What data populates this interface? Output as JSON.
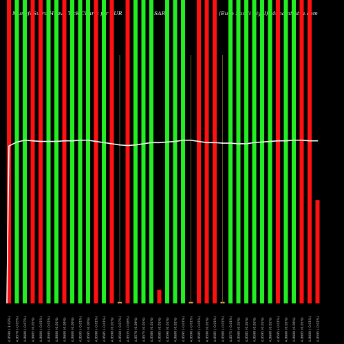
{
  "header": {
    "left": "MunafaSutra Heavy Tick Charts for EUR",
    "mid": "SAR",
    "right": "(Euro Saudi Riyal) MunafaSutra.com"
  },
  "colors": {
    "background": "#000000",
    "up": "#22ee22",
    "down": "#ff1111",
    "small": "#ddaa55",
    "line": "#ffffff",
    "label": "#cccccc"
  },
  "chart_data": {
    "type": "bar",
    "title": "MunafaSutra Heavy Tick Charts for EUR SAR (Euro Saudi Riyal) MunafaSutra.com",
    "categories": [
      "4.0590 (-1.02%)",
      "4.0570 (-0.05%)",
      "4.0600 (-0.07%)",
      "4.0605 (0.01%)",
      "4.0600 (-0.01%)",
      "4.0595 (-0.01%)",
      "4.0600 (0.01%)",
      "4.0600 (0.00%)",
      "4.0600 (0.00%)",
      "4.0595 (-0.01%)",
      "4.0595 (0.00%)",
      "4.0590 (-0.01%)",
      "4.0585 (-0.01%)",
      "4.0590 (0.01%)",
      "4.0560 (-0.07%)",
      "4.0535 (-0.06%)",
      "4.0570 (0.09%)",
      "4.0575 (0.01%)",
      "4.0580 (0.01%)",
      "4.0585 (0.01%)",
      "4.0590 (0.01%)",
      "4.0600 (0.02%)",
      "4.0595 (-0.01%)",
      "4.0590 (-0.01%)",
      "4.0585 (-0.01%)",
      "4.0590 (0.01%)",
      "4.0585 (-0.01%)",
      "4.0580 (-0.01%)",
      "4.0575 (-0.01%)",
      "4.0580 (0.01%)",
      "4.0585 (0.01%)",
      "4.0590 (0.01%)",
      "4.0595 (0.01%)",
      "4.0600 (0.01%)",
      "4.0595 (-0.01%)",
      "4.0600 (0.01%)",
      "4.0600 (0.00%)",
      "4.0605 (0.01%)",
      "4.0600 (-0.01%)",
      "4.0595 (-0.01%)"
    ],
    "series": [
      {
        "values": [
          100,
          100,
          100,
          100,
          100,
          100,
          100,
          100,
          100,
          100,
          100,
          100,
          100,
          100,
          0.5,
          100,
          100,
          100,
          100,
          4.5,
          100,
          100,
          100,
          0.5,
          100,
          100,
          100,
          0.5,
          100,
          100,
          100,
          100,
          100,
          100,
          100,
          100,
          100,
          100,
          100,
          34
        ],
        "colors": [
          "red",
          "green",
          "green",
          "red",
          "red",
          "green",
          "green",
          "red",
          "green",
          "green",
          "green",
          "red",
          "green",
          "red",
          "small",
          "red",
          "green",
          "green",
          "green",
          "red",
          "green",
          "green",
          "green",
          "small",
          "red",
          "red",
          "red",
          "small",
          "green",
          "green",
          "green",
          "green",
          "green",
          "green",
          "red",
          "green",
          "green",
          "red",
          "red",
          "red"
        ]
      },
      {
        "type": "line",
        "values": [
          4.055,
          4.0585,
          4.06,
          4.0595,
          4.059,
          4.059,
          4.059,
          4.0595,
          4.0595,
          4.06,
          4.06,
          4.059,
          4.058,
          4.057,
          4.056,
          4.0555,
          4.056,
          4.057,
          4.058,
          4.058,
          4.0585,
          4.059,
          4.06,
          4.06,
          4.059,
          4.058,
          4.058,
          4.0575,
          4.0575,
          4.057,
          4.057,
          4.058,
          4.0585,
          4.059,
          4.0595,
          4.0595,
          4.06,
          4.06,
          4.0595,
          4.0595
        ],
        "start_value": 3.92
      }
    ],
    "xlabel": "",
    "ylabel": "",
    "ylim": [
      0,
      100
    ],
    "grid": false,
    "legend": "none"
  }
}
